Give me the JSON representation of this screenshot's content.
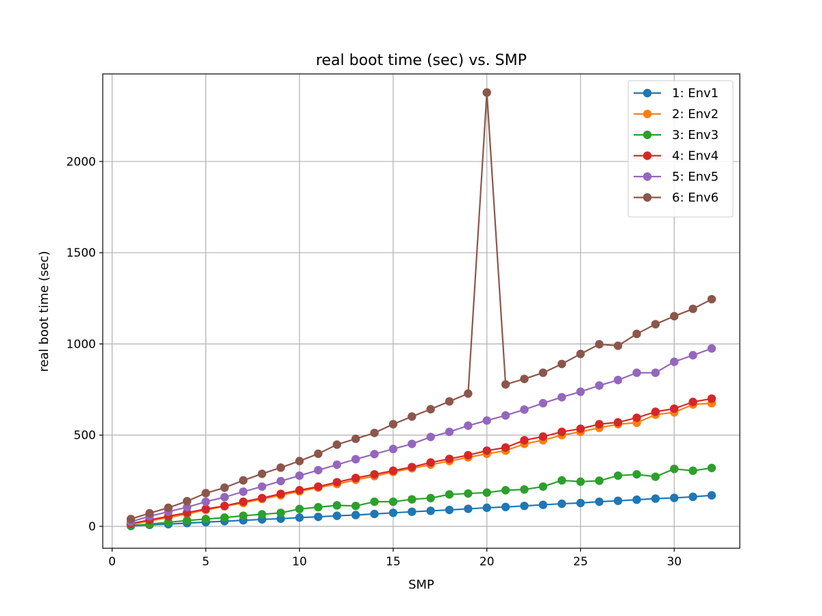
{
  "chart_data": {
    "type": "line",
    "title": "real boot time (sec) vs. SMP",
    "xlabel": "SMP",
    "ylabel": "real boot time (sec)",
    "xlim": [
      -0.5,
      33.5
    ],
    "ylim": [
      -120,
      2480
    ],
    "xticks": [
      0,
      5,
      10,
      15,
      20,
      25,
      30
    ],
    "yticks": [
      0,
      500,
      1000,
      1500,
      2000
    ],
    "grid": true,
    "legend_position": "top-right",
    "marker": "circle",
    "x": [
      1,
      2,
      3,
      4,
      5,
      6,
      7,
      8,
      9,
      10,
      11,
      12,
      13,
      14,
      15,
      16,
      17,
      18,
      19,
      20,
      21,
      22,
      23,
      24,
      25,
      26,
      27,
      28,
      29,
      30,
      31,
      32
    ],
    "series": [
      {
        "name": "1: Env1",
        "color": "#1f77b4",
        "values": [
          2,
          8,
          12,
          18,
          23,
          28,
          33,
          38,
          42,
          48,
          52,
          58,
          62,
          68,
          74,
          80,
          85,
          90,
          96,
          102,
          106,
          112,
          118,
          124,
          128,
          135,
          140,
          146,
          152,
          156,
          162,
          170
        ]
      },
      {
        "name": "2: Env2",
        "color": "#ff7f0e",
        "values": [
          10,
          30,
          48,
          68,
          90,
          110,
          128,
          150,
          170,
          192,
          212,
          232,
          255,
          275,
          298,
          318,
          338,
          358,
          378,
          398,
          415,
          452,
          472,
          500,
          518,
          540,
          560,
          568,
          612,
          625,
          668,
          675
        ]
      },
      {
        "name": "3: Env3",
        "color": "#2ca02c",
        "values": [
          5,
          12,
          22,
          32,
          40,
          48,
          58,
          66,
          74,
          95,
          105,
          115,
          112,
          135,
          135,
          148,
          155,
          175,
          180,
          185,
          198,
          202,
          218,
          252,
          245,
          250,
          278,
          285,
          272,
          315,
          305,
          320
        ]
      },
      {
        "name": "4: Env4",
        "color": "#d62728",
        "values": [
          15,
          35,
          55,
          75,
          95,
          112,
          135,
          155,
          178,
          198,
          218,
          242,
          265,
          285,
          305,
          325,
          350,
          370,
          390,
          415,
          432,
          472,
          492,
          518,
          535,
          560,
          570,
          595,
          628,
          645,
          682,
          700
        ]
      },
      {
        "name": "5: Env5",
        "color": "#9467bd",
        "values": [
          25,
          55,
          80,
          105,
          135,
          160,
          190,
          218,
          248,
          278,
          308,
          338,
          368,
          396,
          424,
          452,
          490,
          518,
          552,
          580,
          608,
          640,
          675,
          708,
          738,
          772,
          802,
          842,
          842,
          902,
          938,
          975
        ]
      },
      {
        "name": "6: Env6",
        "color": "#8c564b",
        "values": [
          40,
          72,
          102,
          138,
          182,
          212,
          252,
          288,
          322,
          358,
          398,
          448,
          480,
          512,
          560,
          602,
          642,
          685,
          728,
          2378,
          778,
          808,
          842,
          890,
          945,
          998,
          990,
          1055,
          1108,
          1152,
          1192,
          1245
        ]
      }
    ]
  }
}
